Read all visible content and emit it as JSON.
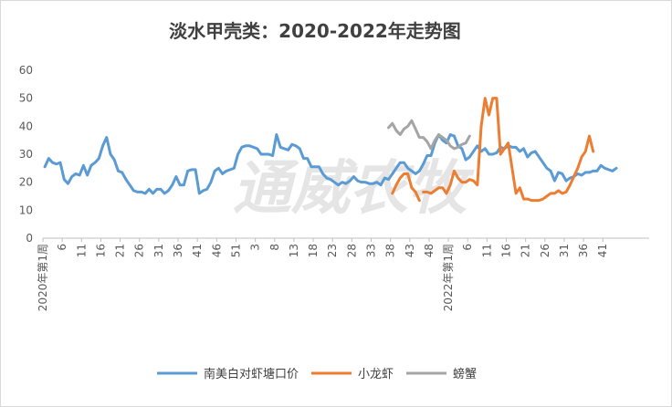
{
  "chart_data": {
    "type": "line",
    "title": "淡水甲壳类：2020-2022年走势图",
    "watermark": "通威农牧",
    "ylim": [
      0,
      60
    ],
    "y_ticks": [
      "0",
      "10",
      "20",
      "30",
      "40",
      "50",
      "60"
    ],
    "x_tick_labels": [
      "2020年第1周",
      "6",
      "11",
      "16",
      "21",
      "26",
      "31",
      "36",
      "41",
      "46",
      "51",
      "3",
      "8",
      "13",
      "18",
      "23",
      "28",
      "33",
      "38",
      "43",
      "48",
      "2022年第1周",
      "6",
      "11",
      "16",
      "21",
      "26",
      "31",
      "36",
      "41"
    ],
    "grid": false,
    "legend_position": "bottom",
    "colors": {
      "南美白对虾塘口价": "#5b9bd5",
      "小龙虾": "#ed7d31",
      "螃蟹": "#a5a5a5"
    },
    "series": [
      {
        "name": "南美白对虾塘口价",
        "color": "#5b9bd5",
        "start_index": 0,
        "values": [
          25.5,
          28.5,
          27,
          26.5,
          27,
          21,
          19.5,
          22,
          23,
          22.5,
          26,
          22.5,
          26,
          27,
          28.5,
          33,
          36,
          30,
          28,
          24,
          23.5,
          21,
          19,
          17,
          16.5,
          16.5,
          16,
          17.5,
          16,
          17.5,
          17.5,
          16,
          17,
          19,
          22,
          19,
          19,
          24,
          24.5,
          24.5,
          16,
          17,
          17.5,
          20,
          24,
          25,
          23,
          24,
          24.5,
          25,
          30,
          32.5,
          33,
          33,
          32.5,
          32,
          30,
          30,
          30,
          29.5,
          37,
          32.5,
          32,
          31.5,
          33.5,
          33,
          32,
          28.5,
          28.5,
          25.5,
          25.5,
          25.5,
          23,
          21.5,
          21,
          20,
          19,
          20,
          19.5,
          20.5,
          22,
          20.5,
          20,
          20,
          19.5,
          19.5,
          20,
          19,
          21.5,
          21,
          23,
          25,
          27,
          27,
          25,
          24,
          23,
          24,
          26.5,
          29.5,
          29.5,
          34,
          37,
          35,
          34,
          37,
          36.5,
          33,
          32,
          28,
          29,
          31,
          33,
          31,
          32,
          30,
          30,
          30.5,
          32.5,
          32,
          33,
          32.5,
          32.5,
          31,
          32,
          29,
          30.5,
          31,
          29,
          27,
          25,
          24,
          20.5,
          23.5,
          23,
          20.5,
          21.5,
          22,
          23,
          22.5,
          23.5,
          23.5,
          24,
          24,
          26,
          25,
          24.5,
          24,
          25
        ]
      },
      {
        "name": "小龙虾",
        "color": "#ed7d31",
        "start_index": 90,
        "values": [
          16,
          19,
          21.5,
          23,
          23,
          18,
          16.5,
          13.5
        ]
      },
      {
        "name": "小龙虾",
        "color": "#ed7d31",
        "start_index": 98,
        "values": [
          16.5,
          16.5,
          16,
          17,
          18,
          18,
          16,
          19,
          24,
          21.5,
          20,
          20,
          21,
          20.5,
          19,
          40,
          50,
          44,
          50,
          50,
          30,
          32,
          34,
          25,
          16,
          18,
          14,
          14,
          13.5,
          13.5,
          13.5,
          14,
          15,
          16,
          16,
          17,
          16,
          16.5,
          19,
          22,
          25,
          29,
          31,
          36.5,
          31
        ]
      },
      {
        "name": "螃蟹",
        "color": "#a5a5a5",
        "start_index": 89,
        "values": [
          39.5,
          41,
          38.5,
          37,
          39,
          40,
          42,
          39,
          36,
          36,
          34.5,
          32,
          35,
          37,
          36,
          35,
          33,
          32,
          32.5,
          33.5,
          34,
          36.5
        ]
      }
    ]
  }
}
